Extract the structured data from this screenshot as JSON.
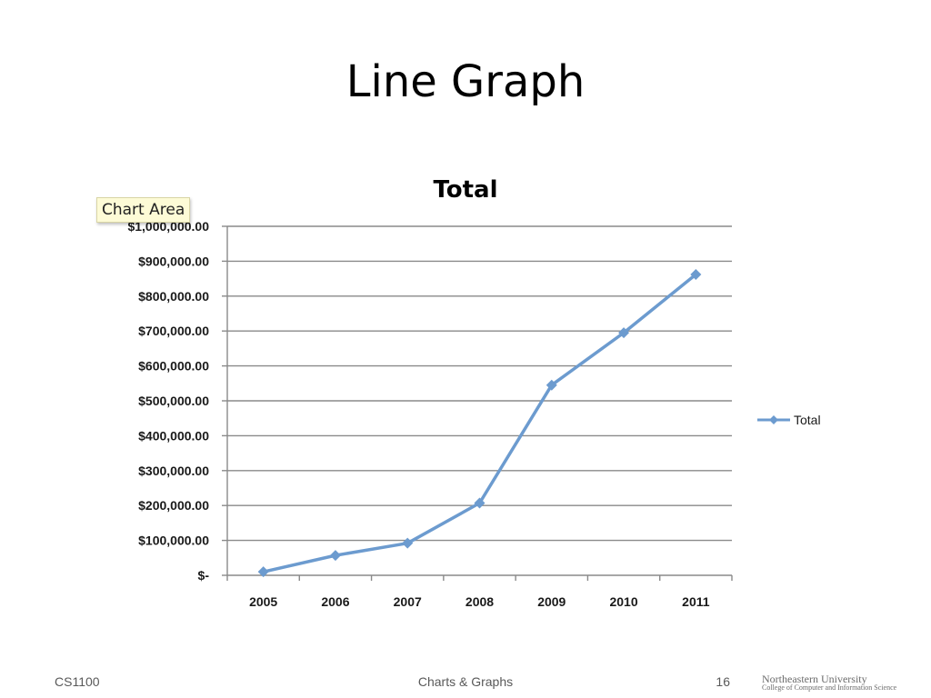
{
  "slide": {
    "title": "Line Graph"
  },
  "tooltip": {
    "text": "Chart Area"
  },
  "chart_data": {
    "type": "line",
    "title": "Total",
    "categories": [
      "2005",
      "2006",
      "2007",
      "2008",
      "2009",
      "2010",
      "2011"
    ],
    "series": [
      {
        "name": "Total",
        "values": [
          10000,
          57000,
          92000,
          207000,
          545000,
          695000,
          862000
        ]
      }
    ],
    "ylim": [
      0,
      1000000
    ],
    "yticks": [
      0,
      100000,
      200000,
      300000,
      400000,
      500000,
      600000,
      700000,
      800000,
      900000,
      1000000
    ],
    "ytick_labels": [
      "$-",
      "$100,000.00",
      "$200,000.00",
      "$300,000.00",
      "$400,000.00",
      "$500,000.00",
      "$600,000.00",
      "$700,000.00",
      "$800,000.00",
      "$900,000.00",
      "$1,000,000.00"
    ],
    "xlabel": "",
    "ylabel": "",
    "grid": true,
    "legend": "right",
    "marker": "diamond",
    "line_color": "#6c9bcf"
  },
  "footer": {
    "course": "CS1100",
    "topic": "Charts & Graphs",
    "page": "16",
    "logo_name": "Northeastern University",
    "logo_subtitle": "College of Computer and Information Science"
  }
}
